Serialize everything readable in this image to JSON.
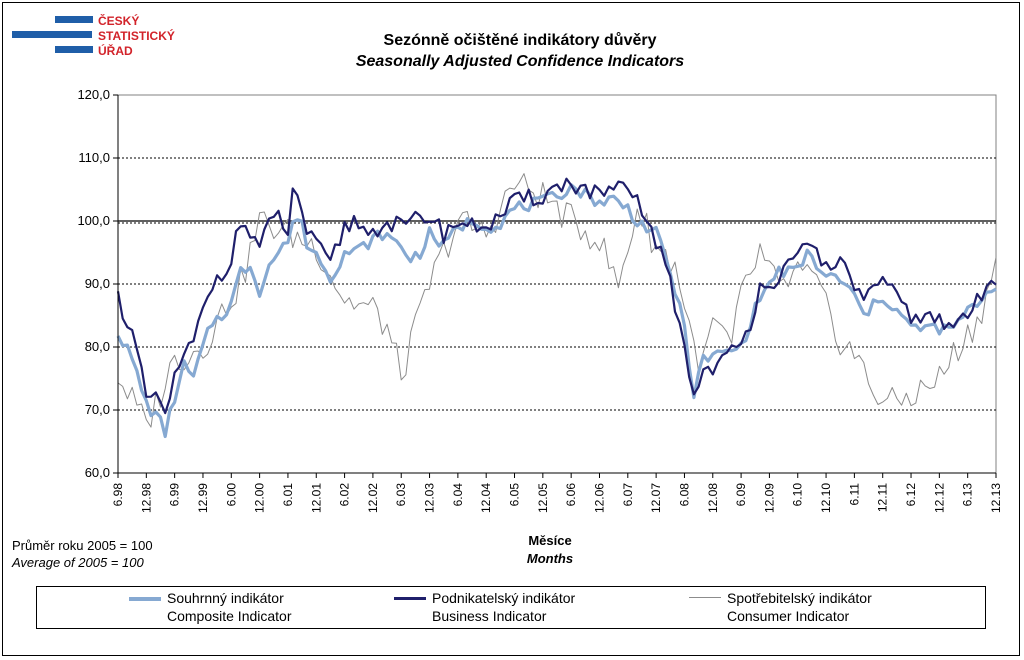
{
  "logo": {
    "lines": [
      "ČESKÝ",
      "STATISTICKÝ",
      "ÚŘAD"
    ],
    "colors": {
      "text": "#d2232a",
      "bars": "#1f5ea8"
    }
  },
  "title": {
    "cz": "Sezónně očištěné indikátory důvěry",
    "en": "Seasonally Adjusted Confidence Indicators"
  },
  "base_note": {
    "cz": "Průměr roku 2005 = 100",
    "en": "Average of 2005 = 100"
  },
  "x_axis_title": {
    "cz": "Měsíce",
    "en": "Months"
  },
  "chart_data": {
    "type": "line",
    "x_start": "1998-06",
    "x_end": "2013-12",
    "ylim": [
      60,
      120
    ],
    "y_ticks": [
      "60,0",
      "70,0",
      "80,0",
      "90,0",
      "100,0",
      "110,0",
      "120,0"
    ],
    "x_tick_labels": [
      "6.98",
      "12.98",
      "6.99",
      "12.99",
      "6.00",
      "12.00",
      "6.01",
      "12.01",
      "6.02",
      "12.02",
      "6.03",
      "12.03",
      "6.04",
      "12.04",
      "6.05",
      "12.05",
      "6.06",
      "12.06",
      "6.07",
      "12.07",
      "6.08",
      "12.08",
      "6.09",
      "12.09",
      "6.10",
      "12.10",
      "6.11",
      "12.11",
      "6.12",
      "12.12",
      "6.13",
      "12.13"
    ],
    "grid": "horizontal dotted, solid line at 100",
    "legend_position": "bottom",
    "series": [
      {
        "key": "consumer",
        "name_cz": "Spotřebitelský indikátor",
        "name_en": "Consumer Indicator",
        "color": "#8c8c8c",
        "anchors": [
          [
            0,
            75.5
          ],
          [
            6,
            67.5
          ],
          [
            12,
            78
          ],
          [
            18,
            80
          ],
          [
            24,
            88
          ],
          [
            26,
            90
          ],
          [
            30,
            100
          ],
          [
            36,
            98
          ],
          [
            42,
            96
          ],
          [
            48,
            87.5
          ],
          [
            54,
            86
          ],
          [
            57,
            83
          ],
          [
            60,
            75.5
          ],
          [
            66,
            90
          ],
          [
            72,
            100
          ],
          [
            78,
            98
          ],
          [
            84,
            106
          ],
          [
            90,
            104
          ],
          [
            96,
            100
          ],
          [
            102,
            97
          ],
          [
            106,
            89.5
          ],
          [
            110,
            102
          ],
          [
            114,
            96
          ],
          [
            118,
            93
          ],
          [
            120,
            87
          ],
          [
            122,
            80
          ],
          [
            124,
            77
          ],
          [
            126,
            84
          ],
          [
            128,
            82
          ],
          [
            130,
            80
          ],
          [
            132,
            88
          ],
          [
            136,
            95
          ],
          [
            140,
            89
          ],
          [
            144,
            92
          ],
          [
            148,
            90
          ],
          [
            152,
            82
          ],
          [
            156,
            79
          ],
          [
            160,
            73
          ],
          [
            164,
            71
          ],
          [
            170,
            73
          ],
          [
            174,
            75
          ],
          [
            178,
            80
          ],
          [
            182,
            84
          ],
          [
            186,
            93
          ]
        ],
        "jitter": 2.6
      },
      {
        "key": "business",
        "name_cz": "Podnikatelský indikátor",
        "name_en": "Business Indicator",
        "color": "#1f1f6b",
        "anchors": [
          [
            0,
            88
          ],
          [
            3,
            82
          ],
          [
            6,
            72
          ],
          [
            9,
            71
          ],
          [
            10,
            69.5
          ],
          [
            12,
            75
          ],
          [
            16,
            81
          ],
          [
            20,
            90
          ],
          [
            22,
            92
          ],
          [
            24,
            94
          ],
          [
            26,
            100
          ],
          [
            28,
            98
          ],
          [
            30,
            96
          ],
          [
            32,
            99
          ],
          [
            34,
            101
          ],
          [
            36,
            98
          ],
          [
            37,
            104
          ],
          [
            38,
            104
          ],
          [
            39,
            102
          ],
          [
            40,
            98
          ],
          [
            43,
            95
          ],
          [
            45,
            93
          ],
          [
            48,
            99
          ],
          [
            50,
            100
          ],
          [
            54,
            98
          ],
          [
            56,
            100
          ],
          [
            60,
            99
          ],
          [
            66,
            101
          ],
          [
            69,
            98
          ],
          [
            72,
            100
          ],
          [
            75,
            99
          ],
          [
            80,
            100
          ],
          [
            84,
            103
          ],
          [
            90,
            104
          ],
          [
            93,
            105.5
          ],
          [
            96,
            106
          ],
          [
            102,
            104
          ],
          [
            105,
            105
          ],
          [
            108,
            104.5
          ],
          [
            110,
            103
          ],
          [
            114,
            97
          ],
          [
            117,
            90
          ],
          [
            120,
            80
          ],
          [
            122,
            72.5
          ],
          [
            124,
            76
          ],
          [
            128,
            78
          ],
          [
            132,
            80
          ],
          [
            134,
            84
          ],
          [
            136,
            90
          ],
          [
            140,
            91
          ],
          [
            144,
            94
          ],
          [
            146,
            96
          ],
          [
            148,
            95
          ],
          [
            150,
            93
          ],
          [
            152,
            94
          ],
          [
            154,
            92
          ],
          [
            156,
            90
          ],
          [
            158,
            88
          ],
          [
            162,
            90
          ],
          [
            166,
            87
          ],
          [
            168,
            85
          ],
          [
            170,
            85
          ],
          [
            174,
            84
          ],
          [
            176,
            83
          ],
          [
            178,
            84
          ],
          [
            182,
            87
          ],
          [
            186,
            91
          ]
        ],
        "jitter": 1.5
      },
      {
        "key": "composite",
        "name_cz": "Souhrnný indikátor",
        "name_en": "Composite Indicator",
        "color": "#86a9d2",
        "anchors": [
          [
            0,
            82.5
          ],
          [
            3,
            78
          ],
          [
            6,
            71
          ],
          [
            9,
            68
          ],
          [
            10,
            66.5
          ],
          [
            12,
            72
          ],
          [
            14,
            77
          ],
          [
            16,
            75
          ],
          [
            18,
            80
          ],
          [
            20,
            84
          ],
          [
            22,
            85
          ],
          [
            24,
            87
          ],
          [
            26,
            92
          ],
          [
            28,
            93
          ],
          [
            30,
            89
          ],
          [
            32,
            93
          ],
          [
            34,
            95
          ],
          [
            36,
            97
          ],
          [
            37,
            99
          ],
          [
            38,
            101
          ],
          [
            39,
            100
          ],
          [
            40,
            96
          ],
          [
            43,
            94
          ],
          [
            45,
            91
          ],
          [
            48,
            95
          ],
          [
            50,
            95
          ],
          [
            54,
            97
          ],
          [
            56,
            98
          ],
          [
            60,
            96
          ],
          [
            62,
            94
          ],
          [
            64,
            95
          ],
          [
            66,
            98
          ],
          [
            69,
            96
          ],
          [
            72,
            99
          ],
          [
            75,
            100
          ],
          [
            80,
            99
          ],
          [
            84,
            102
          ],
          [
            90,
            103
          ],
          [
            93,
            104
          ],
          [
            96,
            105.5
          ],
          [
            102,
            103
          ],
          [
            105,
            103.5
          ],
          [
            108,
            102
          ],
          [
            110,
            100
          ],
          [
            114,
            98
          ],
          [
            117,
            92
          ],
          [
            120,
            83
          ],
          [
            122,
            72.5
          ],
          [
            124,
            78
          ],
          [
            128,
            79
          ],
          [
            132,
            80
          ],
          [
            134,
            84
          ],
          [
            136,
            88
          ],
          [
            140,
            92
          ],
          [
            144,
            92
          ],
          [
            146,
            95
          ],
          [
            148,
            93
          ],
          [
            150,
            91
          ],
          [
            152,
            91
          ],
          [
            154,
            90
          ],
          [
            156,
            88
          ],
          [
            158,
            85
          ],
          [
            162,
            88
          ],
          [
            166,
            85
          ],
          [
            168,
            83
          ],
          [
            170,
            83
          ],
          [
            174,
            83
          ],
          [
            176,
            82.5
          ],
          [
            178,
            84
          ],
          [
            182,
            87
          ],
          [
            186,
            90
          ]
        ],
        "jitter": 1.0
      }
    ]
  },
  "legend": [
    {
      "key": "composite",
      "cz": "Souhrnný indikátor",
      "en": "Composite Indicator"
    },
    {
      "key": "business",
      "cz": "Podnikatelský indikátor",
      "en": "Business Indicator"
    },
    {
      "key": "consumer",
      "cz": "Spotřebitelský indikátor",
      "en": "Consumer Indicator"
    }
  ]
}
